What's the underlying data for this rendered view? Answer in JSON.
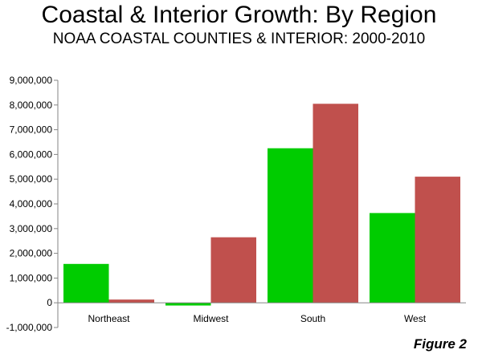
{
  "title": "Coastal & Interior Growth: By Region",
  "subtitle": "NOAA COASTAL COUNTIES & INTERIOR: 2000-2010",
  "figure_label": "Figure 2",
  "chart_data": {
    "type": "bar",
    "categories": [
      "Northeast",
      "Midwest",
      "South",
      "West"
    ],
    "series": [
      {
        "values": [
          1570000,
          -110000,
          6250000,
          3630000
        ],
        "color": "#00cc00"
      },
      {
        "values": [
          130000,
          2650000,
          8050000,
          5100000
        ],
        "color": "#c0504d"
      }
    ],
    "ylim": [
      -1000000,
      9000000
    ],
    "yticks": [
      {
        "value": 9000000,
        "label": "9,000,000"
      },
      {
        "value": 8000000,
        "label": "8,000,000"
      },
      {
        "value": 7000000,
        "label": "7,000,000"
      },
      {
        "value": 6000000,
        "label": "6,000,000"
      },
      {
        "value": 5000000,
        "label": "5,000,000"
      },
      {
        "value": 4000000,
        "label": "4,000,000"
      },
      {
        "value": 3000000,
        "label": "3,000,000"
      },
      {
        "value": 2000000,
        "label": "2,000,000"
      },
      {
        "value": 1000000,
        "label": "1,000,000"
      },
      {
        "value": 0,
        "label": "0"
      },
      {
        "value": -1000000,
        "label": "-1,000,000"
      }
    ],
    "grid": false,
    "legend": "none"
  }
}
